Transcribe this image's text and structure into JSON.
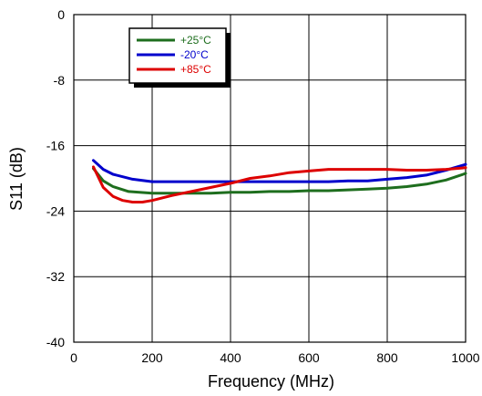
{
  "chart_data": {
    "type": "line",
    "title": "",
    "xlabel": "Frequency (MHz)",
    "ylabel": "S11 (dB)",
    "xlim": [
      0,
      1000
    ],
    "ylim": [
      -40,
      0
    ],
    "x_ticks": [
      "0",
      "200",
      "400",
      "600",
      "800",
      "1000"
    ],
    "y_ticks": [
      "0",
      "-8",
      "-16",
      "-24",
      "-32",
      "-40"
    ],
    "grid": true,
    "legend_position": "top-left",
    "series": [
      {
        "name": "+25°C",
        "color": "#1e6e1e",
        "x": [
          50,
          75,
          100,
          140,
          200,
          250,
          300,
          350,
          400,
          450,
          500,
          550,
          600,
          650,
          700,
          750,
          800,
          850,
          900,
          950,
          1000
        ],
        "y": [
          -18.8,
          -20.3,
          -21.0,
          -21.6,
          -21.8,
          -21.8,
          -21.8,
          -21.8,
          -21.7,
          -21.7,
          -21.6,
          -21.6,
          -21.5,
          -21.5,
          -21.4,
          -21.3,
          -21.2,
          -21.0,
          -20.7,
          -20.2,
          -19.4
        ]
      },
      {
        "name": "-20°C",
        "color": "#0000cc",
        "x": [
          50,
          75,
          100,
          150,
          200,
          250,
          300,
          350,
          400,
          450,
          500,
          550,
          600,
          650,
          700,
          750,
          800,
          850,
          900,
          950,
          1000
        ],
        "y": [
          -17.8,
          -18.9,
          -19.5,
          -20.1,
          -20.4,
          -20.4,
          -20.4,
          -20.4,
          -20.4,
          -20.4,
          -20.4,
          -20.4,
          -20.4,
          -20.4,
          -20.3,
          -20.3,
          -20.1,
          -19.9,
          -19.6,
          -19.0,
          -18.3
        ]
      },
      {
        "name": "+85°C",
        "color": "#dd0000",
        "x": [
          50,
          75,
          100,
          125,
          150,
          175,
          200,
          250,
          300,
          350,
          400,
          450,
          500,
          550,
          600,
          650,
          700,
          750,
          800,
          850,
          900,
          950,
          1000
        ],
        "y": [
          -18.6,
          -21.1,
          -22.2,
          -22.7,
          -22.9,
          -22.9,
          -22.7,
          -22.1,
          -21.6,
          -21.1,
          -20.6,
          -20.0,
          -19.7,
          -19.3,
          -19.1,
          -18.9,
          -18.9,
          -18.9,
          -18.9,
          -19.0,
          -19.0,
          -18.9,
          -18.7
        ]
      }
    ]
  }
}
